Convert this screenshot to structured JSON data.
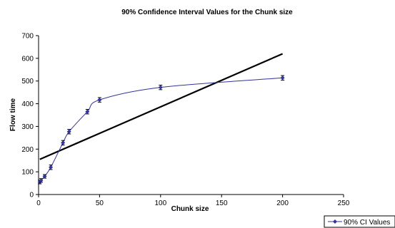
{
  "chart_data": {
    "type": "scatter",
    "title": "90% Confidence Interval Values for the Chunk size",
    "xlabel": "Chunk size",
    "ylabel": "Flow time",
    "xlim": [
      0,
      250
    ],
    "ylim": [
      0,
      700
    ],
    "xticks": [
      "0",
      "50",
      "100",
      "150",
      "200",
      "250"
    ],
    "yticks": [
      "0",
      "100",
      "200",
      "300",
      "400",
      "500",
      "600",
      "700"
    ],
    "grid": false,
    "legend_position": "bottom-right",
    "series": [
      {
        "name": "90% CI Values",
        "color": "#333399",
        "smooth": true,
        "error_bars": true,
        "points": [
          {
            "x": 1,
            "y": 55,
            "err": 8
          },
          {
            "x": 2,
            "y": 62,
            "err": 8
          },
          {
            "x": 5,
            "y": 80,
            "err": 8
          },
          {
            "x": 10,
            "y": 120,
            "err": 10
          },
          {
            "x": 20,
            "y": 228,
            "err": 10
          },
          {
            "x": 25,
            "y": 277,
            "err": 10
          },
          {
            "x": 40,
            "y": 365,
            "err": 10
          },
          {
            "x": 50,
            "y": 417,
            "err": 10
          },
          {
            "x": 100,
            "y": 472,
            "err": 10
          },
          {
            "x": 200,
            "y": 514,
            "err": 10
          }
        ]
      }
    ],
    "trendline": {
      "color": "#000000",
      "points": [
        {
          "x": 1,
          "y": 155
        },
        {
          "x": 200,
          "y": 620
        }
      ]
    }
  }
}
